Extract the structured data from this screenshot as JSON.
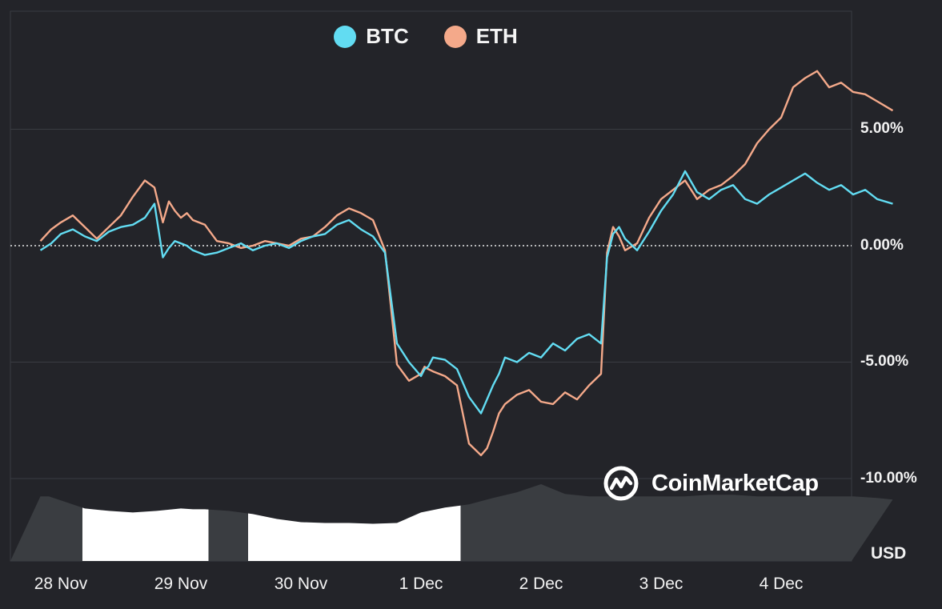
{
  "legend": {
    "btc_label": "BTC",
    "eth_label": "ETH",
    "btc_color": "#62dcf2",
    "eth_color": "#f4a98a"
  },
  "branding": {
    "name": "CoinMarketCap"
  },
  "axis": {
    "y_ticks": [
      "5.00%",
      "0.00%",
      "-5.00%",
      "-10.00%"
    ],
    "x_ticks": [
      "28 Nov",
      "29 Nov",
      "30 Nov",
      "1 Dec",
      "2 Dec",
      "3 Dec",
      "4 Dec"
    ],
    "unit": "USD"
  },
  "chart_data": {
    "type": "line",
    "title": "",
    "xlabel": "",
    "ylabel": "",
    "unit": "USD",
    "x_ticks": [
      "28 Nov",
      "29 Nov",
      "30 Nov",
      "1 Dec",
      "2 Dec",
      "3 Dec",
      "4 Dec"
    ],
    "ylim": [
      -10.5,
      10.0
    ],
    "xlim": [
      -0.17,
      6.93
    ],
    "grid": true,
    "legend_position": "top-center",
    "series": [
      {
        "name": "BTC",
        "color": "#62dcf2",
        "x": [
          -0.17,
          -0.08,
          0.0,
          0.1,
          0.2,
          0.3,
          0.4,
          0.5,
          0.6,
          0.7,
          0.78,
          0.85,
          0.9,
          0.95,
          1.0,
          1.05,
          1.1,
          1.2,
          1.3,
          1.4,
          1.5,
          1.6,
          1.7,
          1.8,
          1.9,
          2.0,
          2.1,
          2.2,
          2.3,
          2.4,
          2.5,
          2.6,
          2.7,
          2.8,
          2.9,
          3.0,
          3.03,
          3.06,
          3.1,
          3.2,
          3.3,
          3.4,
          3.5,
          3.55,
          3.6,
          3.65,
          3.7,
          3.75,
          3.8,
          3.9,
          4.0,
          4.1,
          4.2,
          4.3,
          4.4,
          4.5,
          4.55,
          4.6,
          4.65,
          4.7,
          4.8,
          4.9,
          5.0,
          5.1,
          5.2,
          5.3,
          5.4,
          5.5,
          5.6,
          5.7,
          5.8,
          5.9,
          6.0,
          6.1,
          6.2,
          6.3,
          6.4,
          6.5,
          6.6,
          6.7,
          6.8,
          6.93
        ],
        "values": [
          -0.2,
          0.1,
          0.5,
          0.7,
          0.4,
          0.2,
          0.6,
          0.8,
          0.9,
          1.2,
          1.8,
          -0.5,
          -0.1,
          0.2,
          0.1,
          0.0,
          -0.2,
          -0.4,
          -0.3,
          -0.1,
          0.1,
          -0.2,
          0.0,
          0.1,
          -0.1,
          0.2,
          0.4,
          0.5,
          0.9,
          1.1,
          0.7,
          0.4,
          -0.3,
          -4.2,
          -5.0,
          -5.6,
          -5.3,
          -5.2,
          -4.8,
          -4.9,
          -5.3,
          -6.5,
          -7.2,
          -6.6,
          -6.0,
          -5.5,
          -4.8,
          -4.9,
          -5.0,
          -4.6,
          -4.8,
          -4.2,
          -4.5,
          -4.0,
          -3.8,
          -4.2,
          -0.5,
          0.5,
          0.8,
          0.3,
          -0.2,
          0.6,
          1.5,
          2.2,
          3.2,
          2.3,
          2.0,
          2.4,
          2.6,
          2.0,
          1.8,
          2.2,
          2.5,
          2.8,
          3.1,
          2.7,
          2.4,
          2.6,
          2.2,
          2.4,
          2.0,
          1.8
        ]
      },
      {
        "name": "ETH",
        "color": "#f4a98a",
        "x": [
          -0.17,
          -0.08,
          0.0,
          0.1,
          0.2,
          0.3,
          0.4,
          0.5,
          0.6,
          0.7,
          0.78,
          0.85,
          0.9,
          0.95,
          1.0,
          1.05,
          1.1,
          1.2,
          1.3,
          1.4,
          1.5,
          1.6,
          1.7,
          1.8,
          1.9,
          2.0,
          2.1,
          2.2,
          2.3,
          2.4,
          2.5,
          2.6,
          2.7,
          2.8,
          2.9,
          3.0,
          3.03,
          3.06,
          3.1,
          3.2,
          3.3,
          3.4,
          3.5,
          3.55,
          3.6,
          3.65,
          3.7,
          3.75,
          3.8,
          3.9,
          4.0,
          4.1,
          4.2,
          4.3,
          4.4,
          4.5,
          4.55,
          4.6,
          4.65,
          4.7,
          4.8,
          4.9,
          5.0,
          5.1,
          5.2,
          5.3,
          5.4,
          5.5,
          5.6,
          5.7,
          5.8,
          5.9,
          6.0,
          6.1,
          6.2,
          6.3,
          6.4,
          6.5,
          6.6,
          6.7,
          6.8,
          6.93
        ],
        "values": [
          0.2,
          0.7,
          1.0,
          1.3,
          0.8,
          0.3,
          0.8,
          1.3,
          2.1,
          2.8,
          2.5,
          1.0,
          1.9,
          1.5,
          1.2,
          1.4,
          1.1,
          0.9,
          0.2,
          0.1,
          -0.1,
          0.0,
          0.2,
          0.1,
          0.0,
          0.3,
          0.4,
          0.8,
          1.3,
          1.6,
          1.4,
          1.1,
          -0.2,
          -5.1,
          -5.8,
          -5.5,
          -5.2,
          -5.3,
          -5.4,
          -5.6,
          -6.0,
          -8.5,
          -9.0,
          -8.7,
          -8.0,
          -7.2,
          -6.8,
          -6.6,
          -6.4,
          -6.2,
          -6.7,
          -6.8,
          -6.3,
          -6.6,
          -6.0,
          -5.5,
          -0.3,
          0.8,
          0.4,
          -0.2,
          0.1,
          1.2,
          2.0,
          2.4,
          2.8,
          2.0,
          2.4,
          2.6,
          3.0,
          3.5,
          4.4,
          5.0,
          5.5,
          6.8,
          7.2,
          7.5,
          6.8,
          7.0,
          6.6,
          6.5,
          6.2,
          5.8
        ]
      }
    ],
    "volume": {
      "x": [
        -0.17,
        -0.1,
        0.0,
        0.2,
        0.4,
        0.6,
        0.8,
        1.0,
        1.1,
        1.2,
        1.4,
        1.6,
        1.8,
        2.0,
        2.2,
        2.4,
        2.6,
        2.8,
        3.0,
        3.2,
        3.4,
        3.6,
        3.8,
        4.0,
        4.2,
        4.4,
        4.6,
        4.8,
        5.0,
        5.2,
        5.4,
        5.6,
        5.8,
        6.0,
        6.2,
        6.4,
        6.6,
        6.8,
        6.93
      ],
      "values": [
        0.8,
        0.8,
        0.75,
        0.65,
        0.62,
        0.6,
        0.62,
        0.65,
        0.64,
        0.64,
        0.62,
        0.58,
        0.52,
        0.48,
        0.47,
        0.47,
        0.46,
        0.47,
        0.6,
        0.66,
        0.7,
        0.78,
        0.85,
        0.95,
        0.83,
        0.8,
        0.8,
        0.8,
        0.8,
        0.8,
        0.82,
        0.82,
        0.8,
        0.8,
        0.8,
        0.8,
        0.8,
        0.78,
        0.76
      ],
      "highlight_ranges": [
        [
          0.18,
          1.23
        ],
        [
          1.56,
          3.33
        ]
      ]
    }
  }
}
